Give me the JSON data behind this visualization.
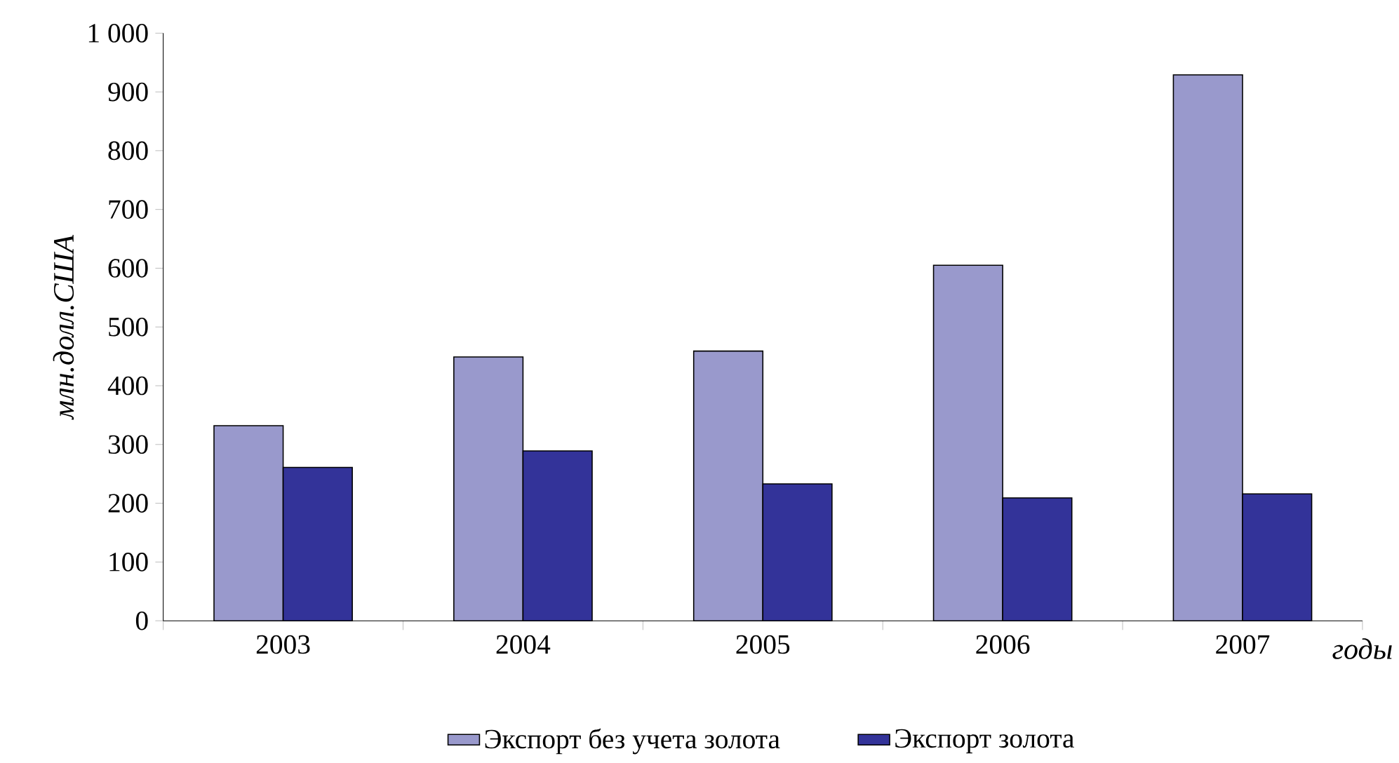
{
  "chart_data": {
    "type": "bar",
    "xlabel": "годы",
    "ylabel": "млн.долл.США",
    "categories": [
      "2003",
      "2004",
      "2005",
      "2006",
      "2007"
    ],
    "series": [
      {
        "name": "Экспорт без учета золота",
        "color": "#9999cc",
        "values": [
          332,
          449,
          459,
          605,
          929
        ]
      },
      {
        "name": "Экспорт золота",
        "color": "#333399",
        "values": [
          261,
          289,
          233,
          209,
          216
        ]
      }
    ],
    "ylim": [
      0,
      1000
    ],
    "yticks": [
      0,
      100,
      200,
      300,
      400,
      500,
      600,
      700,
      800,
      900,
      {
        "value": 1000,
        "label": "1 000"
      }
    ],
    "grid": false,
    "legend": "bottom"
  }
}
